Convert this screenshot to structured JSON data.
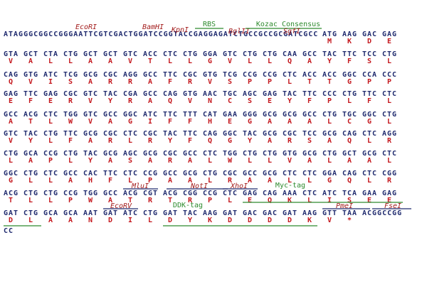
{
  "rows": [
    {
      "leader": "ATAGGGCGGCCGGGAATTCGTCGACTGGATCCGGTACCGAGGAGATCTGCCGCCGCGATCGCC",
      "codons": [
        "ATG",
        "AAG",
        "GAC",
        "GAG"
      ],
      "aa": [
        "M",
        "K",
        "D",
        "E"
      ]
    },
    {
      "codons": [
        "GTA",
        "GCT",
        "CTA",
        "CTG",
        "GCT",
        "GCT",
        "GTC",
        "ACC",
        "CTC",
        "CTG",
        "GGA",
        "GTC",
        "CTG",
        "CTG",
        "CAA",
        "GCC",
        "TAC",
        "TTC",
        "TCC",
        "CTG"
      ],
      "aa": [
        "V",
        "A",
        "L",
        "L",
        "A",
        "A",
        "V",
        "T",
        "L",
        "L",
        "G",
        "V",
        "L",
        "L",
        "Q",
        "A",
        "Y",
        "F",
        "S",
        "L"
      ]
    },
    {
      "codons": [
        "CAG",
        "GTG",
        "ATC",
        "TCG",
        "GCG",
        "CGC",
        "AGG",
        "GCC",
        "TTC",
        "CGC",
        "GTG",
        "TCG",
        "CCG",
        "CCG",
        "CTC",
        "ACC",
        "ACC",
        "GGC",
        "CCA",
        "CCC"
      ],
      "aa": [
        "Q",
        "V",
        "I",
        "S",
        "A",
        "R",
        "R",
        "A",
        "F",
        "R",
        "V",
        "S",
        "P",
        "P",
        "L",
        "T",
        "T",
        "G",
        "P",
        "P"
      ]
    },
    {
      "codons": [
        "GAG",
        "TTC",
        "GAG",
        "CGC",
        "GTC",
        "TAC",
        "CGA",
        "GCC",
        "CAG",
        "GTG",
        "AAC",
        "TGC",
        "AGC",
        "GAG",
        "TAC",
        "TTC",
        "CCC",
        "CTG",
        "TTC",
        "CTC"
      ],
      "aa": [
        "E",
        "F",
        "E",
        "R",
        "V",
        "Y",
        "R",
        "A",
        "Q",
        "V",
        "N",
        "C",
        "S",
        "E",
        "Y",
        "F",
        "P",
        "L",
        "F",
        "L"
      ]
    },
    {
      "codons": [
        "GCC",
        "ACG",
        "CTC",
        "TGG",
        "GTC",
        "GCC",
        "GGC",
        "ATC",
        "TTC",
        "TTT",
        "CAT",
        "GAA",
        "GGG",
        "GCG",
        "GCG",
        "GCC",
        "CTG",
        "TGC",
        "GGC",
        "CTG"
      ],
      "aa": [
        "A",
        "T",
        "L",
        "W",
        "V",
        "A",
        "G",
        "I",
        "F",
        "F",
        "H",
        "E",
        "G",
        "A",
        "A",
        "A",
        "L",
        "C",
        "G",
        "L"
      ]
    },
    {
      "codons": [
        "GTC",
        "TAC",
        "CTG",
        "TTC",
        "GCG",
        "CGC",
        "CTC",
        "CGC",
        "TAC",
        "TTC",
        "CAG",
        "GGC",
        "TAC",
        "GCG",
        "CGC",
        "TCC",
        "GCG",
        "CAG",
        "CTC",
        "AGG"
      ],
      "aa": [
        "V",
        "Y",
        "L",
        "F",
        "A",
        "R",
        "L",
        "R",
        "Y",
        "F",
        "Q",
        "G",
        "Y",
        "A",
        "R",
        "S",
        "A",
        "Q",
        "L",
        "R"
      ]
    },
    {
      "codons": [
        "CTG",
        "GCA",
        "CCG",
        "CTG",
        "TAC",
        "GCG",
        "AGC",
        "GCG",
        "CGC",
        "GCC",
        "CTC",
        "TGG",
        "CTG",
        "CTG",
        "GTG",
        "GCG",
        "CTG",
        "GCT",
        "GCG",
        "CTC"
      ],
      "aa": [
        "L",
        "A",
        "P",
        "L",
        "Y",
        "A",
        "S",
        "A",
        "R",
        "A",
        "L",
        "W",
        "L",
        "L",
        "V",
        "A",
        "L",
        "A",
        "A",
        "L"
      ]
    },
    {
      "codons": [
        "GGC",
        "CTG",
        "CTC",
        "GCC",
        "CAC",
        "TTC",
        "CTC",
        "CCG",
        "GCC",
        "GCG",
        "CTG",
        "CGC",
        "GCC",
        "GCG",
        "CTC",
        "CTC",
        "GGA",
        "CAG",
        "CTC",
        "CGG"
      ],
      "aa": [
        "G",
        "L",
        "L",
        "A",
        "H",
        "F",
        "L",
        "P",
        "A",
        "A",
        "L",
        "R",
        "A",
        "A",
        "L",
        "L",
        "G",
        "Q",
        "L",
        "R"
      ]
    },
    {
      "codons": [
        "ACG",
        "CTG",
        "CTG",
        "CCG",
        "TGG",
        "GCC",
        "ACG",
        "CGT",
        "ACG",
        "CGG",
        "CCG",
        "CTC",
        "GAG",
        "CAG",
        "AAA",
        "CTC",
        "ATC",
        "TCA",
        "GAA",
        "GAG"
      ],
      "aa": [
        "T",
        "L",
        "L",
        "P",
        "W",
        "A",
        "T",
        "R",
        "T",
        "R",
        "P",
        "L",
        "E",
        "Q",
        "K",
        "L",
        "I",
        "S",
        "E",
        "E"
      ]
    },
    {
      "codons": [
        "GAT",
        "CTG",
        "GCA",
        "GCA",
        "AAT",
        "GAT",
        "ATC",
        "CTG",
        "GAT",
        "TAC",
        "AAG",
        "GAT",
        "GAC",
        "GAC",
        "GAT",
        "AAG",
        "GTT",
        "TAA"
      ],
      "aa": [
        "D",
        "L",
        "A",
        "A",
        "N",
        "D",
        "I",
        "L",
        "D",
        "Y",
        "K",
        "D",
        "D",
        "D",
        "D",
        "K",
        "V",
        "*"
      ],
      "trailer": "ACGGCCGG"
    },
    {
      "leader": "CC"
    }
  ],
  "annotations": [
    "EcoRI",
    "BamHI",
    "KpnI",
    "RBS",
    "BglII",
    "Kozac Consensus",
    "SgfI",
    "MluI",
    "NotI",
    "XhoI",
    "Myc-tag",
    "EcoRV",
    "DDK-tag",
    "PmeI",
    "FseI"
  ]
}
